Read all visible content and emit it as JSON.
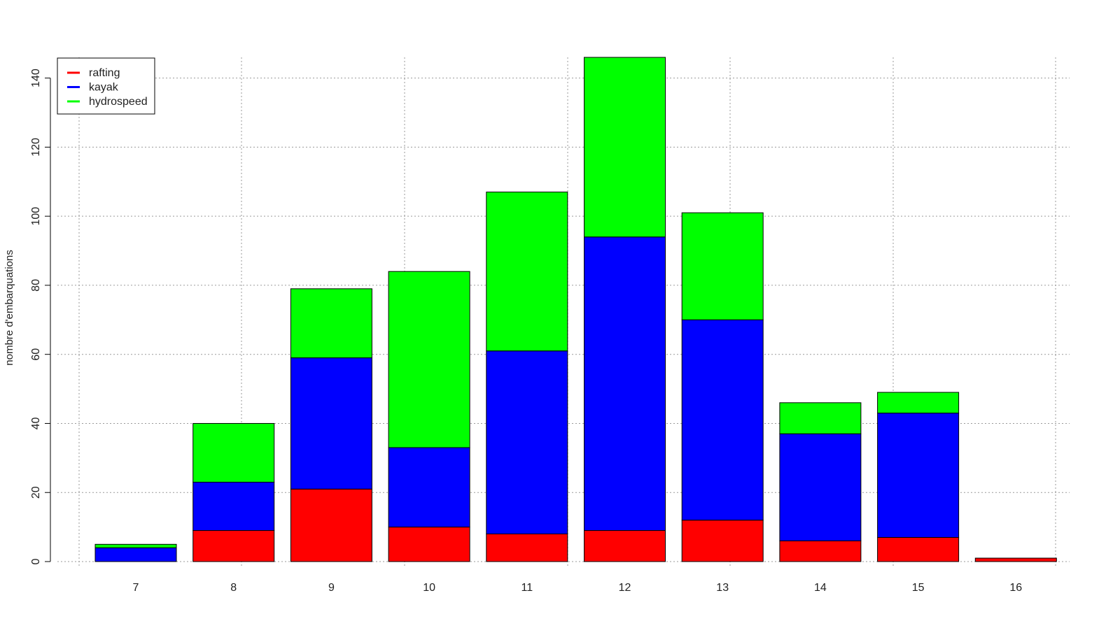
{
  "chart_data": {
    "type": "bar",
    "stacked": true,
    "categories": [
      "7",
      "8",
      "9",
      "10",
      "11",
      "12",
      "13",
      "14",
      "15",
      "16"
    ],
    "series": [
      {
        "name": "rafting",
        "color": "#ff0000",
        "values": [
          0,
          9,
          21,
          10,
          8,
          9,
          12,
          6,
          7,
          1
        ]
      },
      {
        "name": "kayak",
        "color": "#0000ff",
        "values": [
          4,
          14,
          38,
          23,
          53,
          85,
          58,
          31,
          36,
          0
        ]
      },
      {
        "name": "hydrospeed",
        "color": "#00ff00",
        "values": [
          1,
          17,
          20,
          51,
          46,
          52,
          31,
          9,
          6,
          0
        ]
      }
    ],
    "title": "",
    "xlabel": "",
    "ylabel": "nombre d'embarquations",
    "ylim": [
      0,
      146
    ],
    "yticks": [
      0,
      20,
      40,
      60,
      80,
      100,
      120,
      140
    ],
    "grid": true,
    "legend_position": "top-left"
  }
}
